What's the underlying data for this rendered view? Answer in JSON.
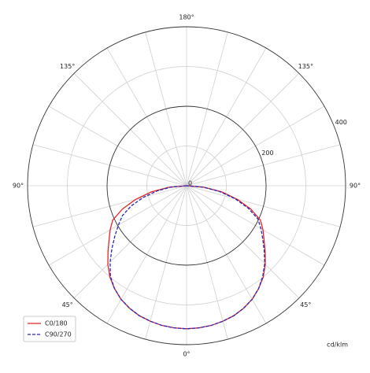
{
  "chart_data": {
    "type": "polar-line",
    "x": [
      -90,
      -85,
      -80,
      -75,
      -70,
      -65,
      -60,
      -55,
      -50,
      -45,
      -40,
      -35,
      -30,
      -25,
      -20,
      -15,
      -10,
      -5,
      0,
      5,
      10,
      15,
      20,
      25,
      30,
      35,
      40,
      45,
      50,
      55,
      60,
      65,
      70,
      75,
      80,
      85,
      90
    ],
    "series": [
      {
        "name": "C0/180",
        "color": "#e02424",
        "dash": false,
        "values": [
          0,
          45,
          90,
          132,
          172,
          205,
          222,
          238,
          258,
          280,
          300,
          316,
          330,
          340,
          348,
          353,
          357,
          359,
          360,
          359,
          357,
          353,
          348,
          340,
          330,
          316,
          300,
          280,
          258,
          238,
          222,
          205,
          172,
          132,
          90,
          45,
          0
        ]
      },
      {
        "name": "C90/270",
        "color": "#2424c0",
        "dash": true,
        "values": [
          0,
          38,
          75,
          112,
          148,
          178,
          198,
          220,
          245,
          272,
          298,
          316,
          330,
          340,
          348,
          353,
          357,
          359,
          360,
          359,
          357,
          353,
          348,
          340,
          330,
          316,
          298,
          278,
          255,
          234,
          216,
          198,
          165,
          126,
          85,
          42,
          0
        ]
      }
    ],
    "rlim": [
      0,
      400
    ],
    "rticks": [
      0,
      200,
      400
    ],
    "rminor": [
      100,
      300
    ],
    "angle_grid_step": 15,
    "angle_ticks": [
      {
        "value": 0,
        "label": "0°"
      },
      {
        "value": 45,
        "label": "45°"
      },
      {
        "value": 90,
        "label": "90°"
      },
      {
        "value": 135,
        "label": "135°"
      },
      {
        "value": 180,
        "label": "180°"
      },
      {
        "value": -135,
        "label": "135°"
      },
      {
        "value": -90,
        "label": "90°"
      },
      {
        "value": -45,
        "label": "45°"
      }
    ],
    "unit_label": "cd/klm",
    "legend": "lower left"
  }
}
